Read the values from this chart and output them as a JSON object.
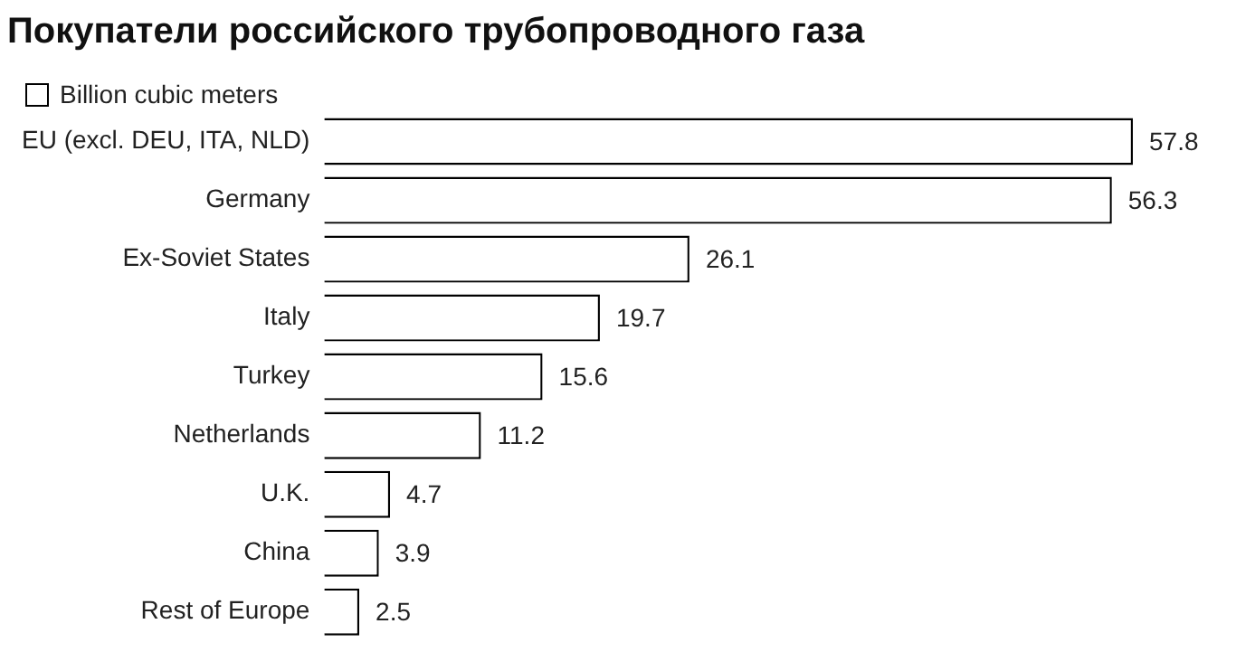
{
  "chart_data": {
    "type": "bar",
    "orientation": "horizontal",
    "title": "Покупатели российского трубопроводного газа",
    "categories": [
      "EU (excl. DEU, ITA, NLD)",
      "Germany",
      "Ex-Soviet States",
      "Italy",
      "Turkey",
      "Netherlands",
      "U.K.",
      "China",
      "Rest of Europe"
    ],
    "series": [
      {
        "name": "Billion cubic meters",
        "color": "#ffffff",
        "values": [
          57.8,
          56.3,
          26.1,
          19.7,
          15.6,
          11.2,
          4.7,
          3.9,
          2.5
        ]
      }
    ],
    "data_labels": true,
    "legend": "top left",
    "grid": false,
    "tick_labels": "y"
  }
}
